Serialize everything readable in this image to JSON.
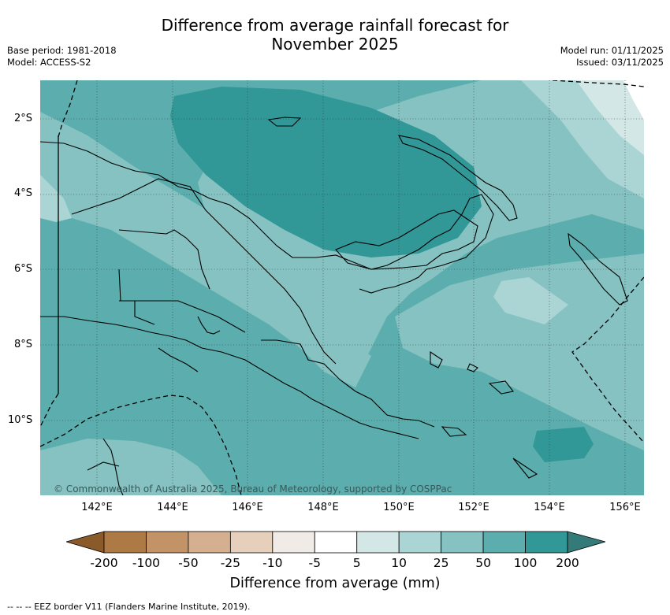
{
  "title_line1": "Difference from average rainfall forecast for",
  "title_line2": "November 2025",
  "base_period": "Base period: 1981-2018",
  "model": "Model: ACCESS-S2",
  "model_run": "Model run: 01/11/2025",
  "issued": "Issued: 03/11/2025",
  "lat_labels": [
    "2°S",
    "4°S",
    "6°S",
    "8°S",
    "10°S"
  ],
  "lon_labels": [
    "142°E",
    "144°E",
    "146°E",
    "148°E",
    "150°E",
    "152°E",
    "154°E",
    "156°E"
  ],
  "copyright": "© Commonwealth of Australia 2025, Bureau of Meteorology, supported by COSPPac",
  "colorbar": {
    "ticks": [
      "-200",
      "-100",
      "-50",
      "-25",
      "-10",
      "-5",
      "5",
      "10",
      "25",
      "50",
      "100",
      "200"
    ],
    "colors": [
      "#8b5a2b",
      "#ad7944",
      "#c39368",
      "#d4b090",
      "#e6d0bc",
      "#f0ebe6",
      "#ffffff",
      "#d3e8e6",
      "#abd5d4",
      "#86c2c1",
      "#5caeae",
      "#319897",
      "#337a79"
    ],
    "title": "Difference from average (mm)"
  },
  "footnote": "--  --  -- EEZ border V11 (Flanders Marine Institute, 2019)."
}
